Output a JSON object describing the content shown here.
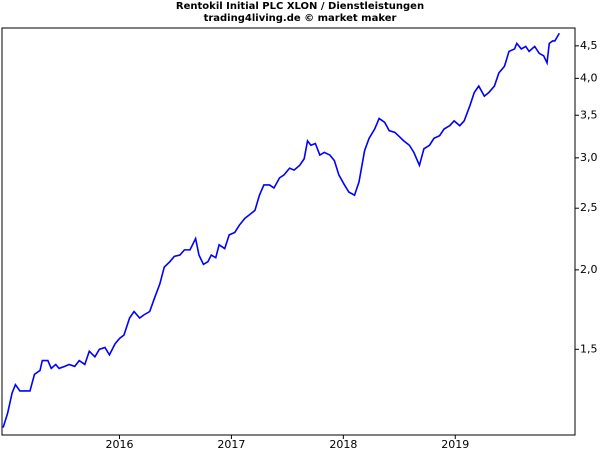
{
  "chart_data": {
    "type": "line",
    "title": "Rentokil Initial PLC XLON / Dienstleistungen",
    "subtitle": "trading4living.de © market maker",
    "x": [
      2014.96,
      2015.0,
      2015.04,
      2015.07,
      2015.11,
      2015.15,
      2015.2,
      2015.24,
      2015.29,
      2015.31,
      2015.36,
      2015.39,
      2015.43,
      2015.46,
      2015.51,
      2015.55,
      2015.6,
      2015.64,
      2015.69,
      2015.73,
      2015.78,
      2015.82,
      2015.87,
      2015.91,
      2015.96,
      2016.0,
      2016.04,
      2016.09,
      2016.13,
      2016.18,
      2016.22,
      2016.27,
      2016.31,
      2016.36,
      2016.4,
      2016.45,
      2016.49,
      2016.54,
      2016.58,
      2016.63,
      2016.68,
      2016.71,
      2016.75,
      2016.79,
      2016.82,
      2016.86,
      2016.89,
      2016.94,
      2016.98,
      2017.03,
      2017.07,
      2017.12,
      2017.16,
      2017.21,
      2017.25,
      2017.29,
      2017.34,
      2017.38,
      2017.43,
      2017.47,
      2017.52,
      2017.56,
      2017.61,
      2017.65,
      2017.68,
      2017.71,
      2017.75,
      2017.79,
      2017.83,
      2017.88,
      2017.92,
      2017.96,
      2018.01,
      2018.05,
      2018.1,
      2018.14,
      2018.19,
      2018.23,
      2018.28,
      2018.32,
      2018.37,
      2018.41,
      2018.46,
      2018.5,
      2018.54,
      2018.59,
      2018.63,
      2018.68,
      2018.72,
      2018.77,
      2018.81,
      2018.86,
      2018.9,
      2018.95,
      2018.99,
      2019.04,
      2019.08,
      2019.13,
      2019.17,
      2019.21,
      2019.26,
      2019.3,
      2019.35,
      2019.39,
      2019.44,
      2019.48,
      2019.53,
      2019.55,
      2019.59,
      2019.63,
      2019.66,
      2019.71,
      2019.75,
      2019.79,
      2019.82,
      2019.84,
      2019.87,
      2019.89,
      2019.93
    ],
    "series": [
      {
        "color": "#0000ff",
        "values": [
          1.13,
          1.19,
          1.28,
          1.32,
          1.29,
          1.29,
          1.29,
          1.37,
          1.39,
          1.44,
          1.44,
          1.4,
          1.42,
          1.4,
          1.41,
          1.42,
          1.41,
          1.44,
          1.42,
          1.49,
          1.46,
          1.5,
          1.51,
          1.47,
          1.53,
          1.56,
          1.58,
          1.68,
          1.72,
          1.68,
          1.7,
          1.72,
          1.8,
          1.9,
          2.02,
          2.06,
          2.1,
          2.11,
          2.15,
          2.15,
          2.24,
          2.11,
          2.04,
          2.06,
          2.11,
          2.09,
          2.19,
          2.16,
          2.27,
          2.29,
          2.35,
          2.41,
          2.44,
          2.48,
          2.62,
          2.72,
          2.72,
          2.69,
          2.79,
          2.82,
          2.89,
          2.87,
          2.92,
          2.99,
          3.19,
          3.14,
          3.16,
          3.03,
          3.06,
          3.03,
          2.97,
          2.82,
          2.72,
          2.65,
          2.62,
          2.75,
          3.08,
          3.22,
          3.33,
          3.46,
          3.41,
          3.31,
          3.29,
          3.24,
          3.19,
          3.14,
          3.06,
          2.92,
          3.1,
          3.14,
          3.22,
          3.25,
          3.33,
          3.37,
          3.43,
          3.37,
          3.43,
          3.62,
          3.8,
          3.89,
          3.75,
          3.8,
          3.89,
          4.08,
          4.18,
          4.41,
          4.45,
          4.54,
          4.45,
          4.49,
          4.41,
          4.49,
          4.38,
          4.34,
          4.23,
          4.54,
          4.58,
          4.58,
          4.71
        ]
      }
    ],
    "xlim": [
      2014.95,
      2020.07
    ],
    "xticks": [
      2016,
      2017,
      2018,
      2019
    ],
    "ylim": [
      1.1,
      4.8
    ],
    "yticks": [
      {
        "value": 1.5,
        "label": "1,5"
      },
      {
        "value": 2.0,
        "label": "2,0"
      },
      {
        "value": 2.5,
        "label": "2,5"
      },
      {
        "value": 3.0,
        "label": "3,0"
      },
      {
        "value": 3.5,
        "label": "3,5"
      },
      {
        "value": 4.0,
        "label": "4,0"
      },
      {
        "value": 4.5,
        "label": "4,5"
      }
    ],
    "log_y": true
  }
}
